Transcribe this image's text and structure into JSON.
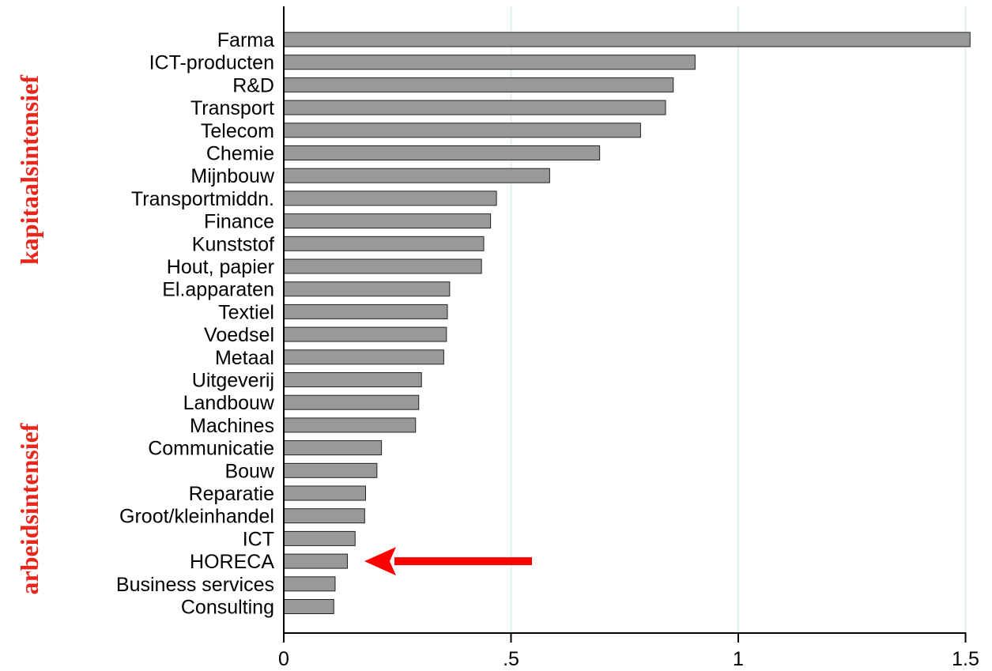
{
  "chart_data": {
    "type": "bar",
    "orientation": "horizontal",
    "categories": [
      "Farma",
      "ICT-producten",
      "R&D",
      "Transport",
      "Telecom",
      "Chemie",
      "Mijnbouw",
      "Transportmiddn.",
      "Finance",
      "Kunststof",
      "Hout, papier",
      "El.apparaten",
      "Textiel",
      "Voedsel",
      "Metaal",
      "Uitgeverij",
      "Landbouw",
      "Machines",
      "Communicatie",
      "Bouw",
      "Reparatie",
      "Groot/kleinhandel",
      "ICT",
      "HORECA",
      "Business services",
      "Consulting"
    ],
    "values": [
      1.51,
      0.905,
      0.857,
      0.84,
      0.785,
      0.695,
      0.585,
      0.468,
      0.455,
      0.44,
      0.435,
      0.365,
      0.36,
      0.358,
      0.352,
      0.303,
      0.297,
      0.29,
      0.215,
      0.205,
      0.18,
      0.178,
      0.157,
      0.14,
      0.113,
      0.11
    ],
    "xlim": [
      0,
      1.55
    ],
    "xticks": [
      0,
      0.5,
      1,
      1.5
    ],
    "xtick_labels": [
      "0",
      ".5",
      "1",
      "1.5"
    ],
    "grid": true,
    "bar_color": "#999999",
    "bar_edge_color": "#222222",
    "gridline_color": "#e3efef",
    "annotations": {
      "upper_label": "kapitaalsintensief",
      "lower_label": "arbeidsintensief",
      "label_color": "#e8261c",
      "arrow_target": "HORECA",
      "arrow_color": "#ff0000"
    }
  }
}
